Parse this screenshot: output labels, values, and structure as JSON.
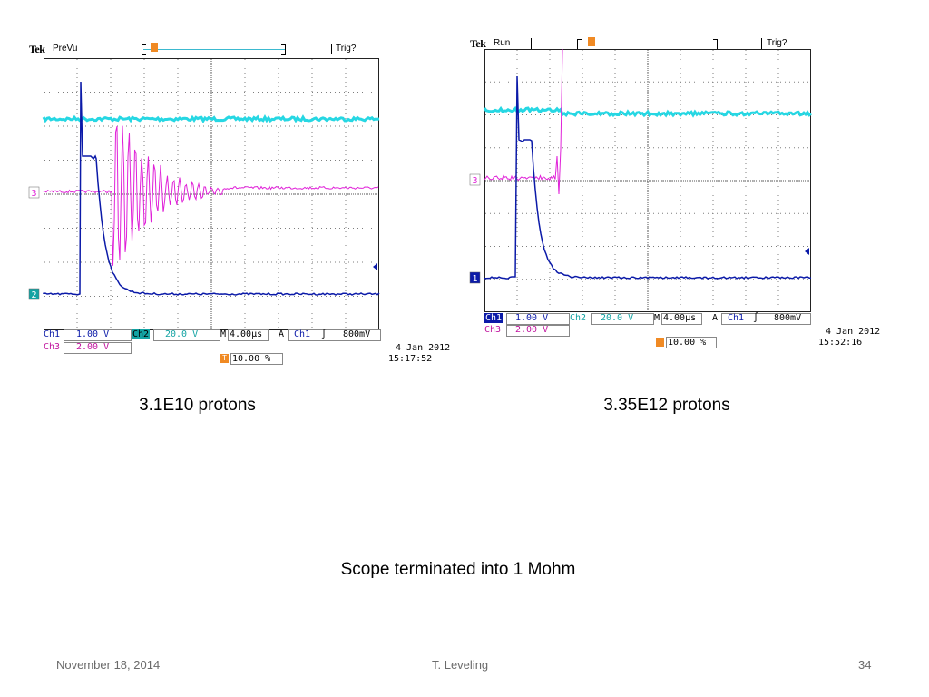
{
  "colors": {
    "ch1": "#0b1aa8",
    "ch2": "#26d7e3",
    "ch3": "#e020d8",
    "trigger_marker": "#f08a24",
    "grid": "#7d7d7d"
  },
  "scope_left": {
    "brand": "Tek",
    "mode": "PreVu",
    "trig_status": "Trig?",
    "trigger_marker_label": "T",
    "ch_markers": [
      "3",
      "2"
    ],
    "readout": {
      "ch1_label": "Ch1",
      "ch1_value": "1.00 V",
      "ch2_label": "Ch2",
      "ch2_value": "20.0 V",
      "time_label": "M",
      "time_value": "4.00µs",
      "trig_src_label": "A",
      "trig_src": "Ch1",
      "trig_slope": "∫",
      "trig_level": "800mV",
      "ch3_label": "Ch3",
      "ch3_value": "2.00 V",
      "trig_pos": "10.00 %",
      "date": "4 Jan  2012",
      "time": "15:17:52"
    }
  },
  "scope_right": {
    "brand": "Tek",
    "mode": "Run",
    "trig_status": "Trig?",
    "trigger_marker_label": "T",
    "ch_markers": [
      "3",
      "1"
    ],
    "readout": {
      "ch1_label": "Ch1",
      "ch1_value": "1.00 V",
      "ch2_label": "Ch2",
      "ch2_value": "20.0 V",
      "time_label": "M",
      "time_value": "4.00µs",
      "trig_src_label": "A",
      "trig_src": "Ch1",
      "trig_slope": "∫",
      "trig_level": "800mV",
      "ch3_label": "Ch3",
      "ch3_value": "2.00 V",
      "trig_pos": "10.00 %",
      "date": "4 Jan  2012",
      "time": "15:52:16"
    }
  },
  "captions": {
    "left": "3.1E10 protons",
    "right": "3.35E12 protons",
    "center": "Scope terminated into 1 Mohm"
  },
  "footer": {
    "date": "November 18, 2014",
    "author": "T. Leveling",
    "page": "34"
  }
}
